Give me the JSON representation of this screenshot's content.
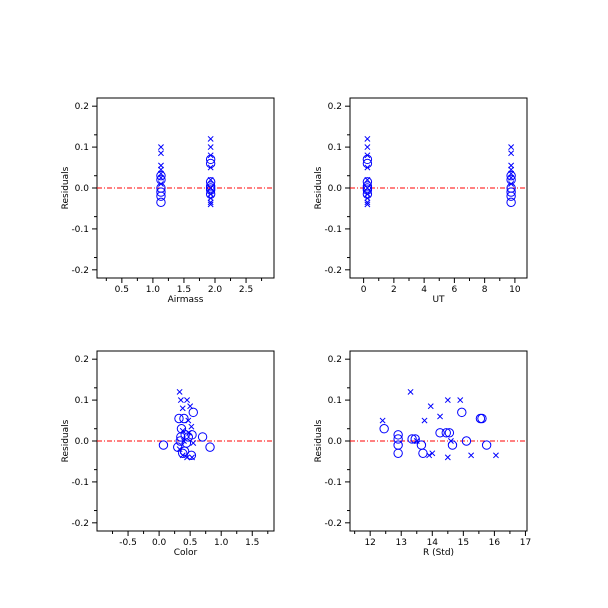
{
  "chart_data": [
    {
      "type": "scatter",
      "xlabel": "Airmass",
      "ylabel": "Residuals",
      "xlim": [
        0.1,
        2.95
      ],
      "ylim": [
        -0.22,
        0.22
      ],
      "xticks": [
        "0.5",
        "1.0",
        "1.5",
        "2.0",
        "2.5"
      ],
      "yticks": [
        "-0.2",
        "-0.1",
        "0.0",
        "0.1",
        "0.2"
      ],
      "zero_line": 0,
      "series": [
        {
          "marker": "circle",
          "points": [
            [
              1.13,
              0.03
            ],
            [
              1.13,
              0.02
            ],
            [
              1.13,
              0.0
            ],
            [
              1.13,
              -0.01
            ],
            [
              1.13,
              -0.02
            ],
            [
              1.13,
              -0.035
            ],
            [
              1.93,
              0.07
            ],
            [
              1.93,
              0.06
            ],
            [
              1.93,
              0.015
            ],
            [
              1.93,
              0.005
            ],
            [
              1.93,
              0.0
            ],
            [
              1.93,
              -0.005
            ],
            [
              1.93,
              -0.015
            ]
          ]
        },
        {
          "marker": "cross",
          "points": [
            [
              1.13,
              0.1
            ],
            [
              1.13,
              0.085
            ],
            [
              1.13,
              0.055
            ],
            [
              1.13,
              0.045
            ],
            [
              1.13,
              0.035
            ],
            [
              1.13,
              0.025
            ],
            [
              1.13,
              0.01
            ],
            [
              1.93,
              0.12
            ],
            [
              1.93,
              0.1
            ],
            [
              1.93,
              0.08
            ],
            [
              1.93,
              0.05
            ],
            [
              1.93,
              0.02
            ],
            [
              1.93,
              0.0
            ],
            [
              1.93,
              -0.015
            ],
            [
              1.93,
              -0.025
            ],
            [
              1.93,
              -0.035
            ],
            [
              1.93,
              -0.04
            ]
          ]
        }
      ]
    },
    {
      "type": "scatter",
      "xlabel": "UT",
      "ylabel": "Residuals",
      "xlim": [
        -0.9,
        10.8
      ],
      "ylim": [
        -0.22,
        0.22
      ],
      "xticks": [
        "0",
        "2",
        "4",
        "6",
        "8",
        "10"
      ],
      "yticks": [
        "-0.2",
        "-0.1",
        "0.0",
        "0.1",
        "0.2"
      ],
      "zero_line": 0,
      "series": [
        {
          "marker": "circle",
          "points": [
            [
              0.25,
              0.07
            ],
            [
              0.25,
              0.06
            ],
            [
              0.25,
              0.015
            ],
            [
              0.25,
              0.005
            ],
            [
              0.25,
              0.0
            ],
            [
              0.25,
              -0.005
            ],
            [
              0.25,
              -0.015
            ],
            [
              9.75,
              0.03
            ],
            [
              9.75,
              0.02
            ],
            [
              9.75,
              0.0
            ],
            [
              9.75,
              -0.01
            ],
            [
              9.75,
              -0.02
            ],
            [
              9.75,
              -0.035
            ]
          ]
        },
        {
          "marker": "cross",
          "points": [
            [
              0.25,
              0.12
            ],
            [
              0.25,
              0.1
            ],
            [
              0.25,
              0.08
            ],
            [
              0.25,
              0.05
            ],
            [
              0.25,
              0.02
            ],
            [
              0.25,
              0.0
            ],
            [
              0.25,
              -0.015
            ],
            [
              0.25,
              -0.025
            ],
            [
              0.25,
              -0.035
            ],
            [
              0.25,
              -0.04
            ],
            [
              9.75,
              0.1
            ],
            [
              9.75,
              0.085
            ],
            [
              9.75,
              0.055
            ],
            [
              9.75,
              0.045
            ],
            [
              9.75,
              0.035
            ],
            [
              9.75,
              0.025
            ],
            [
              9.75,
              0.01
            ]
          ]
        }
      ]
    },
    {
      "type": "scatter",
      "xlabel": "Color",
      "ylabel": "Residuals",
      "xlim": [
        -1.0,
        1.85
      ],
      "ylim": [
        -0.22,
        0.22
      ],
      "xticks": [
        "-0.5",
        "0.0",
        "0.5",
        "1.0",
        "1.5"
      ],
      "yticks": [
        "-0.2",
        "-0.1",
        "0.0",
        "0.1",
        "0.2"
      ],
      "zero_line": 0,
      "series": [
        {
          "marker": "circle",
          "points": [
            [
              0.07,
              -0.01
            ],
            [
              0.32,
              0.055
            ],
            [
              0.36,
              0.03
            ],
            [
              0.4,
              0.055
            ],
            [
              0.55,
              0.07
            ],
            [
              0.35,
              0.01
            ],
            [
              0.42,
              0.015
            ],
            [
              0.47,
              0.01
            ],
            [
              0.53,
              0.015
            ],
            [
              0.34,
              0.0
            ],
            [
              0.44,
              -0.005
            ],
            [
              0.3,
              -0.015
            ],
            [
              0.41,
              -0.025
            ],
            [
              0.38,
              -0.03
            ],
            [
              0.52,
              -0.035
            ],
            [
              0.7,
              0.01
            ],
            [
              0.82,
              -0.015
            ]
          ]
        },
        {
          "marker": "cross",
          "points": [
            [
              0.33,
              0.12
            ],
            [
              0.35,
              0.1
            ],
            [
              0.45,
              0.1
            ],
            [
              0.38,
              0.08
            ],
            [
              0.5,
              0.085
            ],
            [
              0.47,
              0.05
            ],
            [
              0.52,
              0.035
            ],
            [
              0.38,
              0.025
            ],
            [
              0.48,
              0.02
            ],
            [
              0.4,
              0.0
            ],
            [
              0.55,
              -0.005
            ],
            [
              0.33,
              -0.02
            ],
            [
              0.38,
              -0.035
            ],
            [
              0.45,
              -0.04
            ],
            [
              0.53,
              -0.04
            ]
          ]
        }
      ]
    },
    {
      "type": "scatter",
      "xlabel": "R (Std)",
      "ylabel": "Residuals",
      "xlim": [
        11.35,
        17.05
      ],
      "ylim": [
        -0.22,
        0.22
      ],
      "xticks": [
        "12",
        "13",
        "14",
        "15",
        "16",
        "17"
      ],
      "yticks": [
        "-0.2",
        "-0.1",
        "0.0",
        "0.1",
        "0.2"
      ],
      "zero_line": 0,
      "series": [
        {
          "marker": "circle",
          "points": [
            [
              12.45,
              0.03
            ],
            [
              12.9,
              0.015
            ],
            [
              12.9,
              0.005
            ],
            [
              12.9,
              -0.01
            ],
            [
              12.9,
              -0.03
            ],
            [
              13.35,
              0.005
            ],
            [
              13.45,
              0.005
            ],
            [
              13.65,
              -0.01
            ],
            [
              13.7,
              -0.03
            ],
            [
              14.25,
              0.02
            ],
            [
              14.45,
              0.02
            ],
            [
              14.55,
              0.02
            ],
            [
              14.65,
              -0.01
            ],
            [
              14.95,
              0.07
            ],
            [
              15.1,
              0.0
            ],
            [
              15.55,
              0.055
            ],
            [
              15.6,
              0.055
            ],
            [
              15.75,
              -0.01
            ]
          ]
        },
        {
          "marker": "cross",
          "points": [
            [
              12.4,
              0.05
            ],
            [
              13.3,
              0.12
            ],
            [
              13.75,
              0.05
            ],
            [
              13.95,
              0.085
            ],
            [
              14.25,
              0.06
            ],
            [
              14.5,
              0.1
            ],
            [
              14.9,
              0.1
            ],
            [
              13.5,
              0.0
            ],
            [
              14.6,
              0.0
            ],
            [
              13.9,
              -0.035
            ],
            [
              14.5,
              -0.04
            ],
            [
              15.25,
              -0.035
            ],
            [
              16.05,
              -0.035
            ],
            [
              14.0,
              -0.03
            ]
          ]
        }
      ]
    }
  ]
}
